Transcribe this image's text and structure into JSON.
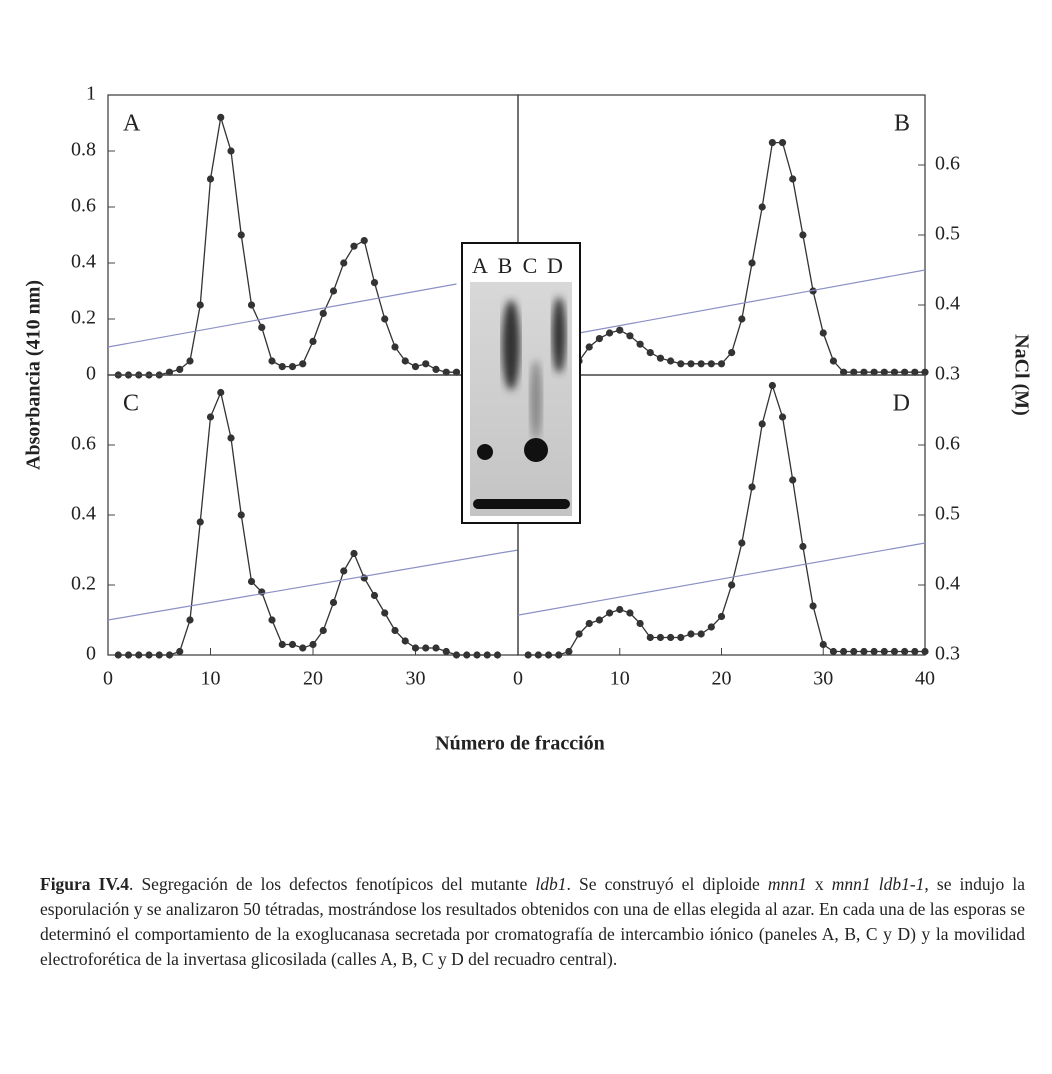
{
  "figure": {
    "ylabel": "Absorbancia (410 nm)",
    "y2label": "NaCl (M)",
    "xlabel": "Número de fracción",
    "inset_lanes": [
      "A",
      "B",
      "C",
      "D"
    ]
  },
  "chart_data": [
    {
      "type": "line",
      "label": "A",
      "xlim": [
        0,
        40
      ],
      "ylim": [
        0,
        1
      ],
      "yticks": [
        0,
        0.2,
        0.4,
        0.6,
        0.8,
        1
      ],
      "y2lim": [
        0.3,
        0.7
      ],
      "series": [
        {
          "color": "#333333",
          "markers": true,
          "x": [
            1,
            2,
            3,
            4,
            5,
            6,
            7,
            8,
            9,
            10,
            11,
            12,
            13,
            14,
            15,
            16,
            17,
            18,
            19,
            20,
            21,
            22,
            23,
            24,
            25,
            26,
            27,
            28,
            29,
            30,
            31,
            32,
            33,
            34
          ],
          "values": [
            0,
            0,
            0,
            0,
            0,
            0.01,
            0.02,
            0.05,
            0.25,
            0.7,
            0.92,
            0.8,
            0.5,
            0.25,
            0.17,
            0.05,
            0.03,
            0.03,
            0.04,
            0.12,
            0.22,
            0.3,
            0.4,
            0.46,
            0.48,
            0.33,
            0.2,
            0.1,
            0.05,
            0.03,
            0.04,
            0.02,
            0.01,
            0.01
          ]
        },
        {
          "color": "#8a90c4",
          "markers": false,
          "axis": "y2",
          "x": [
            0,
            34
          ],
          "values": [
            0.34,
            0.43
          ]
        }
      ]
    },
    {
      "type": "line",
      "label": "B",
      "xlim": [
        0,
        40
      ],
      "ylim": [
        0,
        1
      ],
      "y2lim": [
        0.3,
        0.7
      ],
      "y2ticks": [
        0.3,
        0.4,
        0.5,
        0.6
      ],
      "series": [
        {
          "color": "#333333",
          "markers": true,
          "x": [
            6,
            7,
            8,
            9,
            10,
            11,
            12,
            13,
            14,
            15,
            16,
            17,
            18,
            19,
            20,
            21,
            22,
            23,
            24,
            25,
            26,
            27,
            28,
            29,
            30,
            31,
            32,
            33,
            34,
            35,
            36,
            37,
            38,
            39,
            40
          ],
          "values": [
            0.05,
            0.1,
            0.13,
            0.15,
            0.16,
            0.14,
            0.11,
            0.08,
            0.06,
            0.05,
            0.04,
            0.04,
            0.04,
            0.04,
            0.04,
            0.08,
            0.2,
            0.4,
            0.6,
            0.83,
            0.83,
            0.7,
            0.5,
            0.3,
            0.15,
            0.05,
            0.01,
            0.01,
            0.01,
            0.01,
            0.01,
            0.01,
            0.01,
            0.01,
            0.01
          ]
        },
        {
          "color": "#8a90c4",
          "markers": false,
          "axis": "y2",
          "x": [
            6,
            40
          ],
          "values": [
            0.36,
            0.45
          ]
        }
      ]
    },
    {
      "type": "line",
      "label": "C",
      "xlim": [
        0,
        40
      ],
      "xticks": [
        0,
        10,
        20,
        30
      ],
      "ylim": [
        0,
        0.8
      ],
      "yticks": [
        0,
        0.2,
        0.4,
        0.6
      ],
      "y2lim": [
        0.3,
        0.7
      ],
      "series": [
        {
          "color": "#333333",
          "markers": true,
          "x": [
            1,
            2,
            3,
            4,
            5,
            6,
            7,
            8,
            9,
            10,
            11,
            12,
            13,
            14,
            15,
            16,
            17,
            18,
            19,
            20,
            21,
            22,
            23,
            24,
            25,
            26,
            27,
            28,
            29,
            30,
            31,
            32,
            33,
            34,
            35,
            36,
            37,
            38
          ],
          "values": [
            0,
            0,
            0,
            0,
            0,
            0,
            0.01,
            0.1,
            0.38,
            0.68,
            0.75,
            0.62,
            0.4,
            0.21,
            0.18,
            0.1,
            0.03,
            0.03,
            0.02,
            0.03,
            0.07,
            0.15,
            0.24,
            0.29,
            0.22,
            0.17,
            0.12,
            0.07,
            0.04,
            0.02,
            0.02,
            0.02,
            0.01,
            0,
            0,
            0,
            0,
            0
          ]
        },
        {
          "color": "#8a90c4",
          "markers": false,
          "axis": "y2",
          "x": [
            0,
            40
          ],
          "values": [
            0.35,
            0.45
          ]
        }
      ]
    },
    {
      "type": "line",
      "label": "D",
      "xlim": [
        0,
        40
      ],
      "xticks": [
        0,
        10,
        20,
        30,
        40
      ],
      "ylim": [
        0,
        0.8
      ],
      "y2lim": [
        0.3,
        0.7
      ],
      "y2ticks": [
        0.3,
        0.4,
        0.5,
        0.6
      ],
      "series": [
        {
          "color": "#333333",
          "markers": true,
          "x": [
            1,
            2,
            3,
            4,
            5,
            6,
            7,
            8,
            9,
            10,
            11,
            12,
            13,
            14,
            15,
            16,
            17,
            18,
            19,
            20,
            21,
            22,
            23,
            24,
            25,
            26,
            27,
            28,
            29,
            30,
            31,
            32,
            33,
            34,
            35,
            36,
            37,
            38,
            39,
            40
          ],
          "values": [
            0,
            0,
            0,
            0,
            0.01,
            0.06,
            0.09,
            0.1,
            0.12,
            0.13,
            0.12,
            0.09,
            0.05,
            0.05,
            0.05,
            0.05,
            0.06,
            0.06,
            0.08,
            0.11,
            0.2,
            0.32,
            0.48,
            0.66,
            0.77,
            0.68,
            0.5,
            0.31,
            0.14,
            0.03,
            0.01,
            0.01,
            0.01,
            0.01,
            0.01,
            0.01,
            0.01,
            0.01,
            0.01,
            0.01
          ]
        },
        {
          "color": "#8a90c4",
          "markers": false,
          "axis": "y2",
          "x": [
            0,
            40
          ],
          "values": [
            0.357,
            0.46
          ]
        }
      ]
    }
  ],
  "caption": [
    "Figura IV.4",
    ". Segregación de los defectos fenotípicos del mutante ",
    "ldb1",
    ". Se construyó el diploide ",
    "mnn1",
    " x ",
    "mnn1 ldb1-1",
    ", se indujo la esporulación y se analizaron 50 tétradas, mostrándose los resultados obtenidos con una de ellas elegida al azar. En cada una de las esporas se determinó el comportamiento de la exoglucanasa secretada por cromatografía de intercambio iónico (paneles A, B, C y D) y la movilidad electroforética de la invertasa glicosilada (calles A, B, C y D del recuadro central)."
  ]
}
